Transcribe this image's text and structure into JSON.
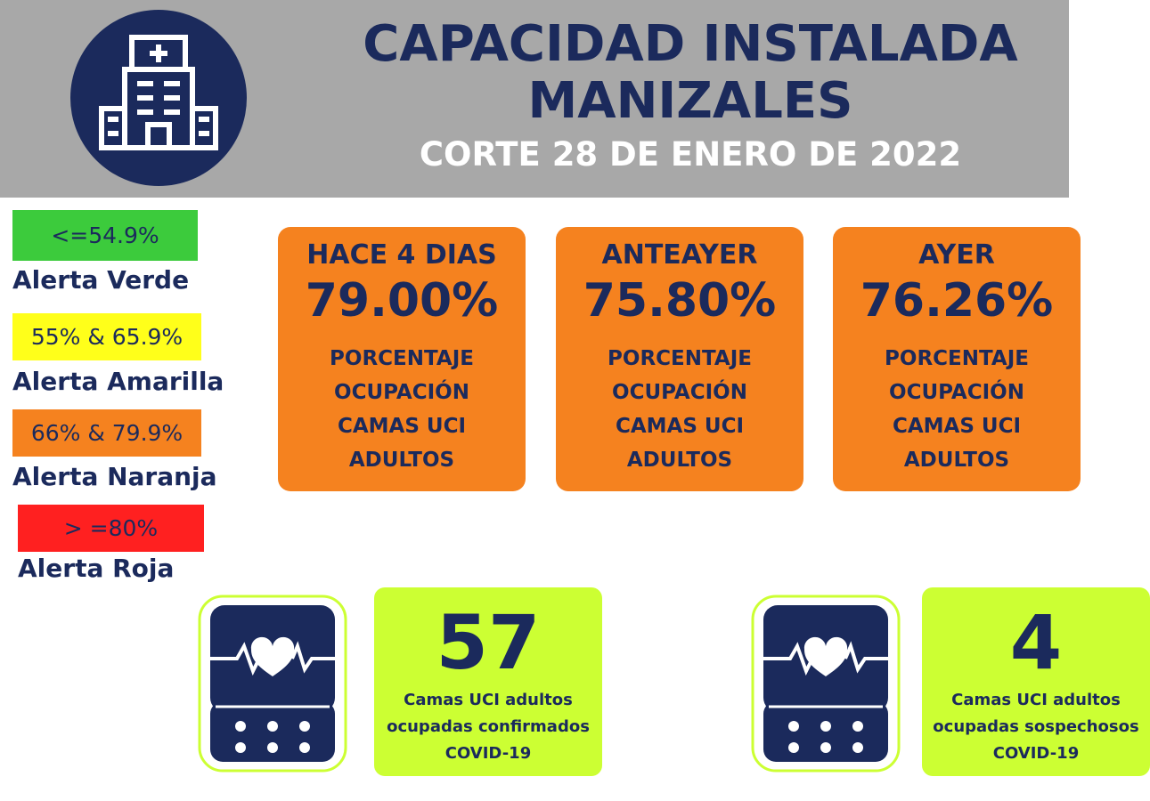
{
  "header": {
    "title_lines": [
      "CAPACIDAD INSTALADA",
      "MANIZALES"
    ],
    "subtitle": "CORTE 28 DE ENERO DE 2022"
  },
  "legend": [
    {
      "range": "<=54.9%",
      "label": "Alerta Verde",
      "color": "#3ccb3c"
    },
    {
      "range": "55% & 65.9%",
      "label": "Alerta Amarilla",
      "color": "#ffff1a"
    },
    {
      "range": "66% & 79.9%",
      "label": "Alerta Naranja",
      "color": "#f5821f"
    },
    {
      "range": "> =80%",
      "label": "Alerta Roja",
      "color": "#ff2020"
    }
  ],
  "cards": [
    {
      "label": "HACE 4 DIAS",
      "value": "79.00%",
      "lines": [
        "PORCENTAJE",
        "OCUPACIÓN",
        "CAMAS UCI",
        "ADULTOS"
      ]
    },
    {
      "label": "ANTEAYER",
      "value": "75.80%",
      "lines": [
        "PORCENTAJE",
        "OCUPACIÓN",
        "CAMAS UCI",
        "ADULTOS"
      ]
    },
    {
      "label": "AYER",
      "value": "76.26%",
      "lines": [
        "PORCENTAJE",
        "OCUPACIÓN",
        "CAMAS UCI",
        "ADULTOS"
      ]
    }
  ],
  "counters": [
    {
      "value": "57",
      "lines": [
        "Camas UCI adultos",
        "ocupadas confirmados",
        "COVID-19"
      ]
    },
    {
      "value": "4",
      "lines": [
        "Camas UCI adultos",
        "ocupadas sospechosos",
        "COVID-19"
      ]
    }
  ]
}
